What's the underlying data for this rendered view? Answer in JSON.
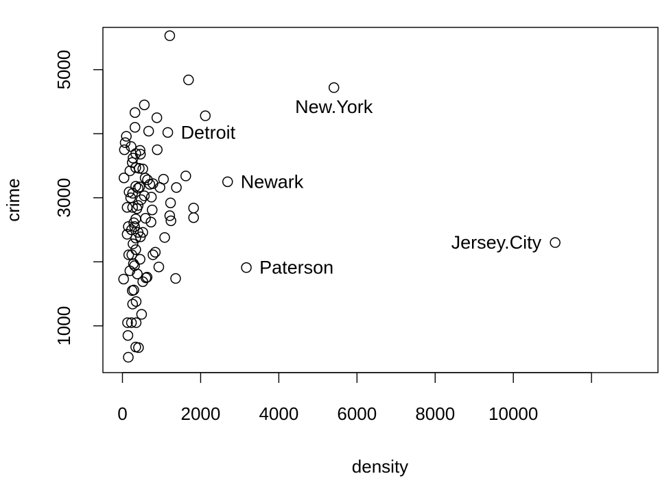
{
  "chart_data": {
    "type": "scatter",
    "title": "",
    "xlabel": "density",
    "ylabel": "crime",
    "xlim": [
      -500,
      13700
    ],
    "ylim": [
      270,
      5660
    ],
    "x_ticks": [
      0,
      2000,
      4000,
      6000,
      8000,
      10000,
      12000
    ],
    "x_tick_labels": [
      "0",
      "2000",
      "4000",
      "6000",
      "8000",
      "10000",
      ""
    ],
    "y_ticks": [
      1000,
      2000,
      3000,
      4000,
      5000
    ],
    "y_tick_labels": [
      "1000",
      "",
      "3000",
      "",
      "5000"
    ],
    "grid": false,
    "legend": "none",
    "point_color": "#000000",
    "points": [
      {
        "x": 1210,
        "y": 5530
      },
      {
        "x": 1690,
        "y": 4840
      },
      {
        "x": 5410,
        "y": 4720,
        "label": "New.York"
      },
      {
        "x": 560,
        "y": 4450
      },
      {
        "x": 320,
        "y": 4330
      },
      {
        "x": 2120,
        "y": 4280
      },
      {
        "x": 880,
        "y": 4250
      },
      {
        "x": 320,
        "y": 4100
      },
      {
        "x": 670,
        "y": 4040
      },
      {
        "x": 1160,
        "y": 4020,
        "label": "Detroit"
      },
      {
        "x": 100,
        "y": 3960
      },
      {
        "x": 70,
        "y": 3860
      },
      {
        "x": 220,
        "y": 3800
      },
      {
        "x": 50,
        "y": 3750
      },
      {
        "x": 890,
        "y": 3750
      },
      {
        "x": 450,
        "y": 3740
      },
      {
        "x": 340,
        "y": 3690
      },
      {
        "x": 460,
        "y": 3680
      },
      {
        "x": 270,
        "y": 3620
      },
      {
        "x": 250,
        "y": 3550
      },
      {
        "x": 340,
        "y": 3470
      },
      {
        "x": 430,
        "y": 3460
      },
      {
        "x": 520,
        "y": 3450
      },
      {
        "x": 190,
        "y": 3420
      },
      {
        "x": 1620,
        "y": 3340
      },
      {
        "x": 40,
        "y": 3310
      },
      {
        "x": 580,
        "y": 3310
      },
      {
        "x": 640,
        "y": 3280
      },
      {
        "x": 1050,
        "y": 3290
      },
      {
        "x": 2690,
        "y": 3250,
        "label": "Newark"
      },
      {
        "x": 780,
        "y": 3220
      },
      {
        "x": 700,
        "y": 3210
      },
      {
        "x": 340,
        "y": 3180
      },
      {
        "x": 440,
        "y": 3170
      },
      {
        "x": 400,
        "y": 3150
      },
      {
        "x": 960,
        "y": 3160
      },
      {
        "x": 1380,
        "y": 3160
      },
      {
        "x": 170,
        "y": 3090
      },
      {
        "x": 260,
        "y": 3070
      },
      {
        "x": 210,
        "y": 3000
      },
      {
        "x": 560,
        "y": 3030
      },
      {
        "x": 740,
        "y": 3010
      },
      {
        "x": 480,
        "y": 2970
      },
      {
        "x": 400,
        "y": 2880
      },
      {
        "x": 1230,
        "y": 2920
      },
      {
        "x": 120,
        "y": 2850
      },
      {
        "x": 260,
        "y": 2850
      },
      {
        "x": 370,
        "y": 2830
      },
      {
        "x": 760,
        "y": 2810
      },
      {
        "x": 1820,
        "y": 2840
      },
      {
        "x": 590,
        "y": 2680
      },
      {
        "x": 1210,
        "y": 2720
      },
      {
        "x": 1820,
        "y": 2690
      },
      {
        "x": 340,
        "y": 2670
      },
      {
        "x": 290,
        "y": 2610
      },
      {
        "x": 730,
        "y": 2620
      },
      {
        "x": 1240,
        "y": 2640
      },
      {
        "x": 150,
        "y": 2550
      },
      {
        "x": 310,
        "y": 2550
      },
      {
        "x": 230,
        "y": 2500
      },
      {
        "x": 400,
        "y": 2460
      },
      {
        "x": 520,
        "y": 2460
      },
      {
        "x": 120,
        "y": 2430
      },
      {
        "x": 460,
        "y": 2390
      },
      {
        "x": 340,
        "y": 2370
      },
      {
        "x": 1080,
        "y": 2380
      },
      {
        "x": 270,
        "y": 2280
      },
      {
        "x": 11070,
        "y": 2300,
        "label": "Jersey.City"
      },
      {
        "x": 340,
        "y": 2190
      },
      {
        "x": 160,
        "y": 2110
      },
      {
        "x": 240,
        "y": 2110
      },
      {
        "x": 840,
        "y": 2150
      },
      {
        "x": 780,
        "y": 2110
      },
      {
        "x": 450,
        "y": 2040
      },
      {
        "x": 280,
        "y": 1970
      },
      {
        "x": 310,
        "y": 1940
      },
      {
        "x": 930,
        "y": 1920
      },
      {
        "x": 3170,
        "y": 1910,
        "label": "Paterson"
      },
      {
        "x": 190,
        "y": 1860
      },
      {
        "x": 380,
        "y": 1810
      },
      {
        "x": 630,
        "y": 1760
      },
      {
        "x": 600,
        "y": 1750
      },
      {
        "x": 30,
        "y": 1730
      },
      {
        "x": 1360,
        "y": 1740
      },
      {
        "x": 520,
        "y": 1690
      },
      {
        "x": 290,
        "y": 1560
      },
      {
        "x": 250,
        "y": 1550
      },
      {
        "x": 350,
        "y": 1380
      },
      {
        "x": 260,
        "y": 1340
      },
      {
        "x": 490,
        "y": 1180
      },
      {
        "x": 130,
        "y": 1050
      },
      {
        "x": 230,
        "y": 1050
      },
      {
        "x": 350,
        "y": 1050
      },
      {
        "x": 140,
        "y": 850
      },
      {
        "x": 340,
        "y": 670
      },
      {
        "x": 410,
        "y": 660
      },
      {
        "x": 150,
        "y": 510
      }
    ]
  }
}
